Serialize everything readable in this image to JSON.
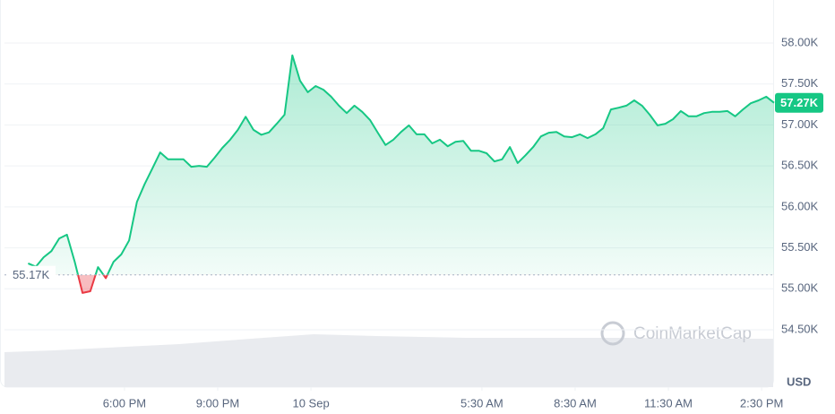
{
  "chart_data": {
    "type": "line",
    "x": [
      14.9,
      15.15,
      15.4,
      15.65,
      15.9,
      16.15,
      16.4,
      16.65,
      16.9,
      17.15,
      17.4,
      17.65,
      17.9,
      18.15,
      18.4,
      18.65,
      18.9,
      19.15,
      19.4,
      19.65,
      19.9,
      20.15,
      20.4,
      20.65,
      20.9,
      21.15,
      21.4,
      21.65,
      21.9,
      22.15,
      22.4,
      22.65,
      22.9,
      23.15,
      23.4,
      23.65,
      23.9,
      24.15,
      24.4,
      24.65,
      24.9,
      25.15,
      25.4,
      25.65,
      25.9,
      26.15,
      26.4,
      26.65,
      26.9,
      27.15,
      27.4,
      27.65,
      27.9,
      28.15,
      28.4,
      28.65,
      28.9,
      29.15,
      29.4,
      29.65,
      29.9,
      30.15,
      30.4,
      30.65,
      30.9,
      31.15,
      31.4,
      31.65,
      31.9,
      32.15,
      32.4,
      32.65,
      32.9,
      33.15,
      33.4,
      33.65,
      33.9,
      34.15,
      34.4,
      34.65,
      34.9,
      35.15,
      35.4,
      35.65,
      35.9,
      36.15,
      36.4,
      36.65,
      36.9,
      37.15,
      37.4,
      37.65,
      37.9,
      38.15,
      38.4,
      38.65,
      38.9
    ],
    "values": [
      55310,
      55270,
      55385,
      55460,
      55615,
      55660,
      55330,
      54950,
      54970,
      55265,
      55130,
      55330,
      55420,
      55590,
      56060,
      56280,
      56470,
      56665,
      56580,
      56580,
      56580,
      56490,
      56500,
      56490,
      56600,
      56720,
      56820,
      56940,
      57100,
      56940,
      56880,
      56910,
      57015,
      57125,
      57850,
      57540,
      57400,
      57475,
      57430,
      57345,
      57235,
      57145,
      57235,
      57160,
      57060,
      56905,
      56755,
      56820,
      56915,
      56995,
      56885,
      56885,
      56775,
      56820,
      56740,
      56795,
      56805,
      56685,
      56685,
      56655,
      56555,
      56580,
      56730,
      56535,
      56630,
      56730,
      56860,
      56905,
      56915,
      56860,
      56850,
      56885,
      56840,
      56885,
      56960,
      57190,
      57210,
      57235,
      57300,
      57235,
      57125,
      56995,
      57015,
      57070,
      57170,
      57105,
      57105,
      57145,
      57160,
      57160,
      57170,
      57105,
      57190,
      57265,
      57300,
      57345,
      57270
    ],
    "up_color": "#16c784",
    "down_color": "#ea3943",
    "baseline": {
      "value": 55170,
      "label": "55.17K"
    },
    "last_price": {
      "value": 57270,
      "label": "57.27K"
    },
    "currency": "USD",
    "watermark": "CoinMarketCap",
    "xlim": [
      14.14,
      38.9
    ],
    "ylim": [
      53800,
      58525
    ],
    "xticks": [
      {
        "value": 18,
        "label": "6:00 PM"
      },
      {
        "value": 21,
        "label": "9:00 PM"
      },
      {
        "value": 24,
        "label": "10 Sep"
      },
      {
        "value": 29.5,
        "label": "5:30 AM"
      },
      {
        "value": 32.5,
        "label": "8:30 AM"
      },
      {
        "value": 35.5,
        "label": "11:30 AM"
      },
      {
        "value": 38.5,
        "label": "2:30 PM"
      }
    ],
    "yticks": [
      {
        "value": 54500,
        "label": "54.50K"
      },
      {
        "value": 55000,
        "label": "55.00K"
      },
      {
        "value": 55500,
        "label": "55.50K"
      },
      {
        "value": 56000,
        "label": "56.00K"
      },
      {
        "value": 56500,
        "label": "56.50K"
      },
      {
        "value": 57000,
        "label": "57.00K"
      },
      {
        "value": 57500,
        "label": "57.50K"
      },
      {
        "value": 58000,
        "label": "58.00K"
      }
    ],
    "grid": true
  }
}
